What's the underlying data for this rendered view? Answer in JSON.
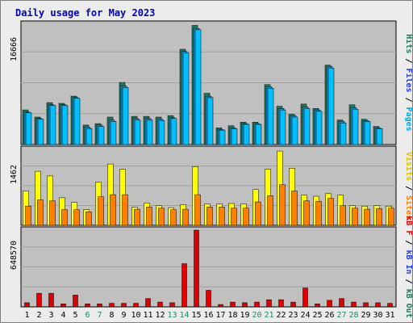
{
  "chart_data": {
    "type": "bar",
    "title": "Daily usage for May 2023",
    "categories": [
      "1",
      "2",
      "3",
      "4",
      "5",
      "6",
      "7",
      "8",
      "9",
      "10",
      "11",
      "12",
      "13",
      "14",
      "15",
      "16",
      "17",
      "18",
      "19",
      "20",
      "21",
      "22",
      "23",
      "24",
      "25",
      "26",
      "27",
      "28",
      "29",
      "30",
      "31"
    ],
    "weekend_days": [
      "6",
      "7",
      "13",
      "14",
      "20",
      "21",
      "27",
      "28"
    ],
    "panels": [
      {
        "id": "top",
        "max_label": "16666",
        "ylim": [
          0,
          16666
        ],
        "series": [
          {
            "name": "Hits",
            "color": "#1e7a5a",
            "values": [
              4800,
              3800,
              5800,
              5700,
              6700,
              2700,
              2900,
              3800,
              8600,
              3900,
              3900,
              3800,
              4000,
              13200,
              16500,
              7100,
              2300,
              2600,
              3100,
              3100,
              8300,
              5300,
              4200,
              5600,
              5000,
              11000,
              3400,
              5500,
              3500,
              2500,
              1
            ]
          },
          {
            "name": "Files",
            "color": "#1e90d8",
            "values": [
              4500,
              3600,
              5500,
              5500,
              6500,
              2400,
              2700,
              3400,
              8100,
              3600,
              3600,
              3500,
              3700,
              12900,
              16100,
              6700,
              2100,
              2300,
              2900,
              2900,
              8000,
              5000,
              4000,
              5200,
              4800,
              10800,
              3200,
              5100,
              3300,
              2300,
              1
            ]
          },
          {
            "name": "Pages",
            "color": "#00c0ff",
            "values": [
              4400,
              3500,
              5400,
              5400,
              6400,
              2200,
              2500,
              3200,
              7900,
              3400,
              3400,
              3300,
              3600,
              12700,
              15900,
              6500,
              2000,
              2200,
              2800,
              2800,
              7800,
              4800,
              3800,
              5000,
              4600,
              10600,
              3000,
              4900,
              3200,
              2200,
              1
            ]
          }
        ],
        "side_labels": [
          {
            "text": "Hits",
            "color": "#1e7a5a"
          },
          {
            "text": " / ",
            "color": "#000000"
          },
          {
            "text": "Files",
            "color": "#1e3cd8"
          },
          {
            "text": " / ",
            "color": "#000000"
          },
          {
            "text": "Pages",
            "color": "#00a8e0"
          }
        ]
      },
      {
        "id": "mid",
        "max_label": "1462",
        "ylim": [
          0,
          1462
        ],
        "series": [
          {
            "name": "Visits",
            "color": "#ffff00",
            "values": [
              660,
              1040,
              950,
              530,
              440,
              300,
              830,
              1180,
              1080,
              350,
              430,
              380,
              340,
              400,
              1130,
              410,
              410,
              420,
              410,
              690,
              1080,
              1430,
              1100,
              580,
              560,
              610,
              580,
              380,
              370,
              380,
              370
            ]
          },
          {
            "name": "Sites",
            "color": "#ff8000",
            "values": [
              370,
              490,
              470,
              300,
              300,
              260,
              550,
              590,
              590,
              310,
              350,
              330,
              300,
              310,
              590,
              350,
              350,
              330,
              330,
              450,
              570,
              780,
              660,
              470,
              460,
              520,
              380,
              330,
              310,
              320,
              330
            ]
          }
        ],
        "side_labels": [
          {
            "text": "Visits",
            "color": "#e0c000"
          },
          {
            "text": " / ",
            "color": "#000000"
          },
          {
            "text": "Sites",
            "color": "#ff8000"
          }
        ]
      },
      {
        "id": "bottom",
        "max_label": "648570",
        "ylim": [
          0,
          648570
        ],
        "series": [
          {
            "name": "kB F",
            "color": "#e00000",
            "values": [
              35000,
              115000,
              115000,
              25000,
              100000,
              25000,
              25000,
              30000,
              30000,
              30000,
              70000,
              40000,
              35000,
              365000,
              648570,
              140000,
              20000,
              40000,
              35000,
              40000,
              60000,
              60000,
              40000,
              160000,
              25000,
              55000,
              70000,
              40000,
              35000,
              35000,
              30000
            ]
          }
        ],
        "side_labels": [
          {
            "text": "kB F",
            "color": "#e00000"
          },
          {
            "text": " / ",
            "color": "#000000"
          },
          {
            "text": "kB In",
            "color": "#1e3cd8"
          },
          {
            "text": " / ",
            "color": "#000000"
          },
          {
            "text": "kB Out",
            "color": "#1e7a5a"
          }
        ]
      }
    ],
    "colors": {
      "title": "#0000c0",
      "weekday_label": "#000000",
      "weekend_label": "#1e8c5a",
      "plot_bg": "#c0c0c0",
      "gridline": "#a0a0a0"
    },
    "grid": true
  }
}
